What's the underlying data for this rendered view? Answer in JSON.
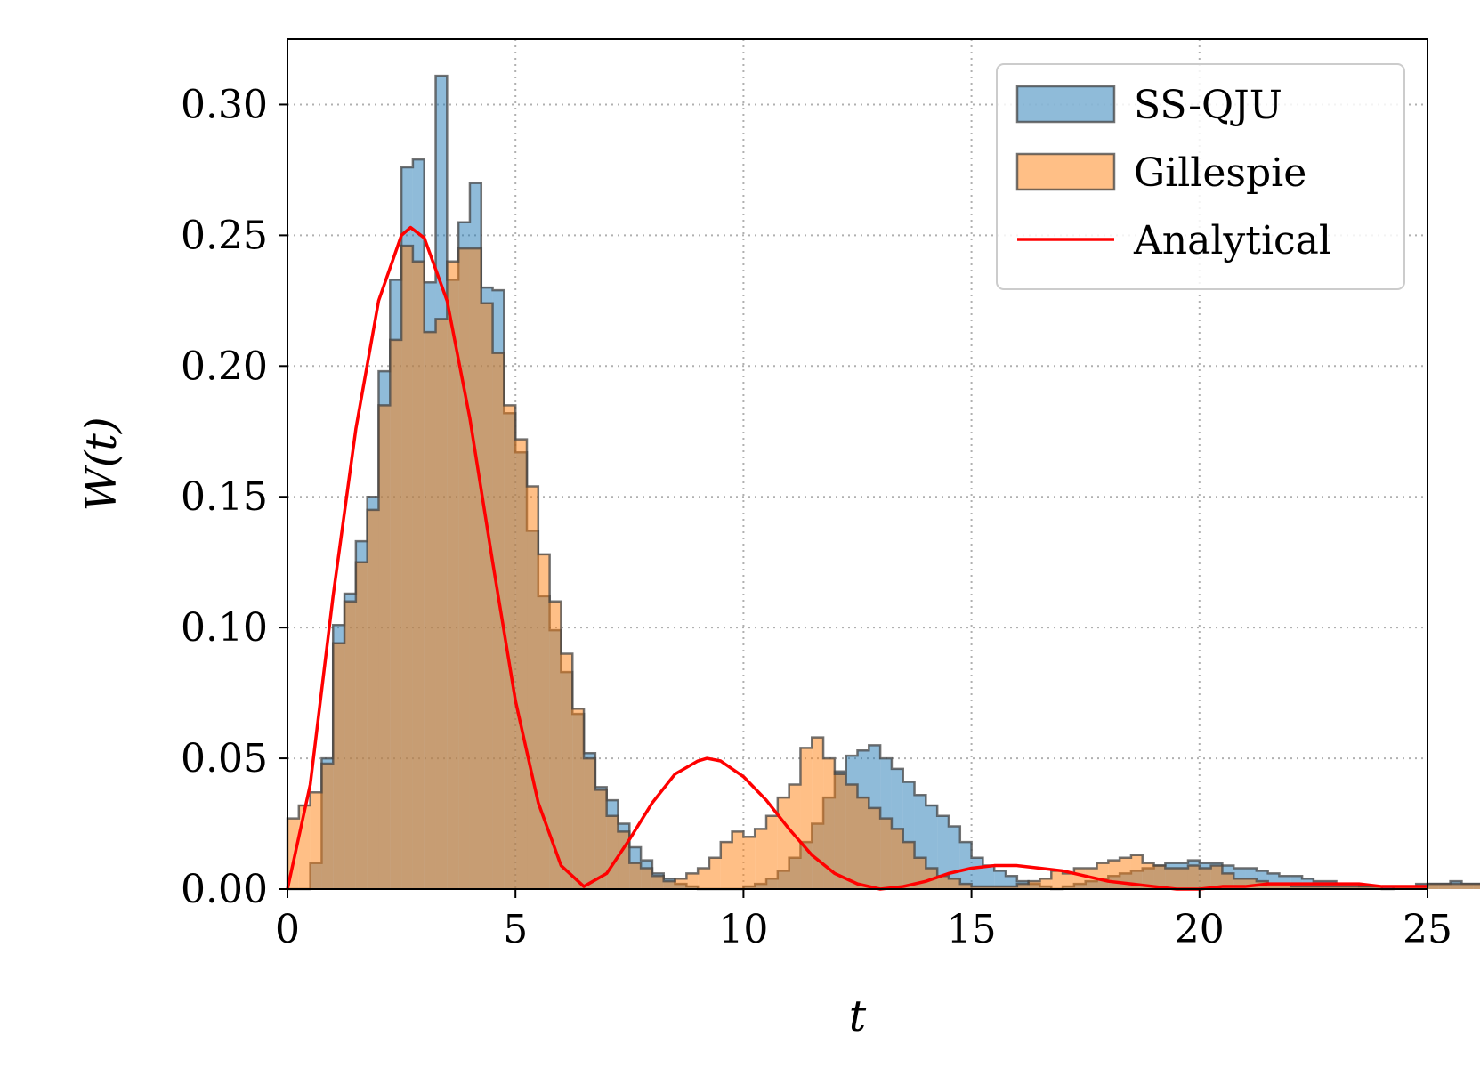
{
  "chart_data": {
    "type": "histogram",
    "xlabel": "t",
    "ylabel": "W(t)",
    "xlim": [
      0,
      25
    ],
    "ylim": [
      0,
      0.325
    ],
    "xticks": [
      0,
      5,
      10,
      15,
      20,
      25
    ],
    "xtick_labels": [
      "0",
      "5",
      "10",
      "15",
      "20",
      "25"
    ],
    "yticks": [
      0,
      0.05,
      0.1,
      0.15,
      0.2,
      0.25,
      0.3
    ],
    "ytick_labels": [
      "0.00",
      "0.05",
      "0.10",
      "0.15",
      "0.20",
      "0.25",
      "0.30"
    ],
    "grid": true,
    "legend_position": "top-right",
    "bin_width": 0.25,
    "series": [
      {
        "name": "SS-QJU",
        "kind": "histogram",
        "color": "#1f77b4",
        "bin_start": 0,
        "values": [
          0.0,
          0.0,
          0.01,
          0.05,
          0.101,
          0.113,
          0.133,
          0.15,
          0.198,
          0.233,
          0.276,
          0.279,
          0.232,
          0.311,
          0.233,
          0.255,
          0.27,
          0.23,
          0.229,
          0.182,
          0.167,
          0.137,
          0.112,
          0.099,
          0.083,
          0.067,
          0.052,
          0.039,
          0.034,
          0.025,
          0.016,
          0.011,
          0.006,
          0.004,
          0.002,
          0.001,
          0.0,
          0.0,
          0.0,
          0.0,
          0.001,
          0.002,
          0.004,
          0.007,
          0.012,
          0.018,
          0.025,
          0.035,
          0.045,
          0.051,
          0.053,
          0.055,
          0.05,
          0.046,
          0.041,
          0.036,
          0.032,
          0.028,
          0.024,
          0.018,
          0.012,
          0.009,
          0.007,
          0.005,
          0.003,
          0.002,
          0.001,
          0.0,
          0.001,
          0.002,
          0.003,
          0.004,
          0.005,
          0.006,
          0.007,
          0.008,
          0.009,
          0.01,
          0.01,
          0.011,
          0.01,
          0.01,
          0.009,
          0.008,
          0.008,
          0.007,
          0.006,
          0.005,
          0.005,
          0.004,
          0.003,
          0.003,
          0.002,
          0.002,
          0.001,
          0.001,
          0.001,
          0.001,
          0.001,
          0.002,
          0.002,
          0.002,
          0.003,
          0.002,
          0.002,
          0.003,
          0.002,
          0.002,
          0.001,
          0.002,
          0.001,
          0.002,
          0.001,
          0.001,
          0.001,
          0.001,
          0.001,
          0.001,
          0.0,
          0.001
        ]
      },
      {
        "name": "Gillespie",
        "kind": "histogram",
        "color": "#ff7f0e",
        "bin_start": 0,
        "values": [
          0.027,
          0.032,
          0.037,
          0.048,
          0.094,
          0.11,
          0.125,
          0.145,
          0.185,
          0.21,
          0.246,
          0.24,
          0.213,
          0.218,
          0.24,
          0.245,
          0.245,
          0.224,
          0.205,
          0.185,
          0.172,
          0.154,
          0.128,
          0.11,
          0.09,
          0.069,
          0.05,
          0.038,
          0.028,
          0.022,
          0.01,
          0.008,
          0.005,
          0.003,
          0.004,
          0.006,
          0.008,
          0.012,
          0.018,
          0.022,
          0.02,
          0.023,
          0.028,
          0.035,
          0.04,
          0.054,
          0.058,
          0.05,
          0.044,
          0.04,
          0.035,
          0.031,
          0.027,
          0.023,
          0.018,
          0.012,
          0.008,
          0.005,
          0.004,
          0.002,
          0.001,
          0.001,
          0.001,
          0.001,
          0.002,
          0.003,
          0.004,
          0.007,
          0.006,
          0.008,
          0.008,
          0.01,
          0.011,
          0.012,
          0.013,
          0.01,
          0.009,
          0.008,
          0.008,
          0.009,
          0.008,
          0.009,
          0.006,
          0.004,
          0.004,
          0.003,
          0.002,
          0.002,
          0.001,
          0.001,
          0.001,
          0.001,
          0.001,
          0.001,
          0.001,
          0.001,
          0.0,
          0.001,
          0.001,
          0.001,
          0.002,
          0.002,
          0.002,
          0.002,
          0.002,
          0.002,
          0.002,
          0.002,
          0.001,
          0.001,
          0.001,
          0.001,
          0.001,
          0.001,
          0.001,
          0.0,
          0.001,
          0.0,
          0.0,
          0.0
        ]
      },
      {
        "name": "Analytical",
        "kind": "line",
        "color": "#ff0000",
        "function": "0.253 * t^2/7.29 * exp(-2*(t-2.7)/2.7) envelope with oscillating zeros",
        "x": [
          0,
          0.5,
          1,
          1.5,
          2,
          2.5,
          2.7,
          3,
          3.5,
          4,
          4.5,
          5,
          5.5,
          6,
          6.5,
          7,
          7.5,
          8,
          8.5,
          9,
          9.2,
          9.5,
          10,
          10.5,
          11,
          11.5,
          12,
          12.5,
          13,
          13.5,
          14,
          14.5,
          15,
          15.5,
          16,
          16.5,
          17,
          17.5,
          18,
          18.5,
          19,
          19.5,
          20,
          20.5,
          21,
          21.5,
          22,
          22.5,
          23,
          23.5,
          24,
          24.5,
          25
        ],
        "y": [
          0,
          0.04,
          0.112,
          0.176,
          0.225,
          0.25,
          0.253,
          0.249,
          0.225,
          0.18,
          0.125,
          0.072,
          0.033,
          0.009,
          0.001,
          0.006,
          0.019,
          0.033,
          0.044,
          0.049,
          0.05,
          0.049,
          0.043,
          0.034,
          0.023,
          0.013,
          0.006,
          0.002,
          0.0,
          0.001,
          0.003,
          0.006,
          0.008,
          0.009,
          0.009,
          0.008,
          0.007,
          0.005,
          0.003,
          0.002,
          0.001,
          0.0,
          0.0,
          0.001,
          0.001,
          0.002,
          0.002,
          0.002,
          0.002,
          0.002,
          0.001,
          0.001,
          0.001
        ]
      }
    ]
  }
}
